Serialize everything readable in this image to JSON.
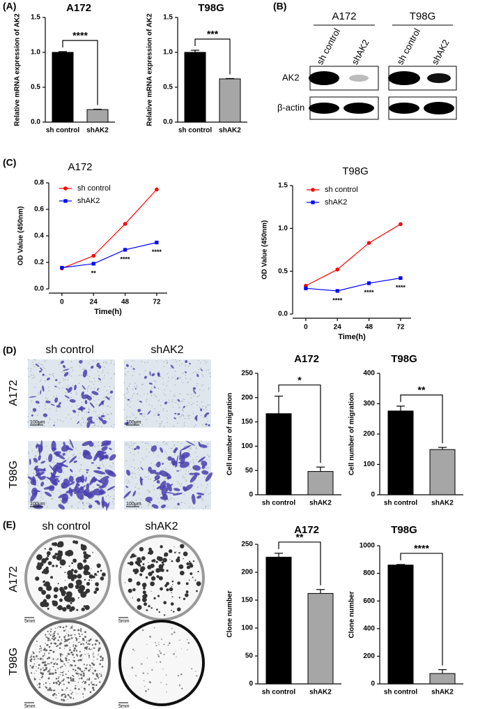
{
  "panel_labels": [
    "(A)",
    "(B)",
    "(C)",
    "(D)",
    "(E)"
  ],
  "western_blot": {
    "cell_lines": [
      "A172",
      "T98G"
    ],
    "lanes": [
      "sh control",
      "shAK2"
    ],
    "proteins": [
      "AK2",
      "β-actin"
    ]
  },
  "migration_images": {
    "columns": [
      "sh control",
      "shAK2"
    ],
    "rows": [
      "A172",
      "T98G"
    ],
    "scale_bar": "100μm"
  },
  "colony_images": {
    "columns": [
      "sh control",
      "shAK2"
    ],
    "rows": [
      "A172",
      "T98G"
    ],
    "scale_bar": "5mm"
  },
  "chart_data": [
    {
      "type": "bar",
      "title": "A172",
      "y_label": "Relative mRNA expression of AK2",
      "categories": [
        "sh control",
        "shAK2"
      ],
      "values": [
        1.0,
        0.18
      ],
      "errors": [
        0.01,
        0.005
      ],
      "colors": [
        "#000000",
        "#a6a6a6"
      ],
      "ylim": [
        0,
        1.5
      ],
      "yticks": [
        {
          "value": 0,
          "label": "0.0"
        },
        0.5,
        {
          "value": 1,
          "label": "1.0"
        },
        1.5
      ],
      "significance": "****"
    },
    {
      "type": "bar",
      "title": "T98G",
      "y_label": "Relative mRNA expression of AK2",
      "categories": [
        "sh control",
        "shAK2"
      ],
      "values": [
        1.0,
        0.62
      ],
      "errors": [
        0.03,
        0.005
      ],
      "colors": [
        "#000000",
        "#a6a6a6"
      ],
      "ylim": [
        0,
        1.5
      ],
      "yticks": [
        {
          "value": 0,
          "label": "0.0"
        },
        0.5,
        {
          "value": 1,
          "label": "1.0"
        },
        1.5
      ],
      "significance": "***"
    },
    {
      "type": "line",
      "title": "A172",
      "x_label": "Time(h)",
      "y_label": "OD Value (450nm)",
      "x": [
        0,
        24,
        48,
        72
      ],
      "xlim": [
        -10,
        80
      ],
      "xticks": [
        0,
        24,
        48,
        72
      ],
      "ylim": [
        0,
        0.8
      ],
      "yticks": [
        {
          "value": 0,
          "label": "0.0"
        },
        0.2,
        0.4,
        0.6,
        0.8
      ],
      "series": [
        {
          "name": "sh control",
          "color": "#ff0000",
          "marker": "circle",
          "values": [
            0.155,
            0.25,
            0.49,
            0.75
          ]
        },
        {
          "name": "shAK2",
          "color": "#0000ff",
          "marker": "square",
          "values": [
            0.16,
            0.19,
            0.295,
            0.35
          ]
        }
      ],
      "annotations": [
        {
          "x": 24,
          "text": "**"
        },
        {
          "x": 48,
          "text": "****"
        },
        {
          "x": 72,
          "text": "****"
        }
      ]
    },
    {
      "type": "line",
      "title": "T98G",
      "x_label": "Time(h)",
      "y_label": "OD Value (450nm)",
      "x": [
        0,
        24,
        48,
        72
      ],
      "xlim": [
        -10,
        80
      ],
      "xticks": [
        0,
        24,
        48,
        72
      ],
      "ylim": [
        0,
        1.5
      ],
      "yticks": [
        {
          "value": 0,
          "label": "0.0"
        },
        0.5,
        {
          "value": 1,
          "label": "1.0"
        },
        1.5
      ],
      "series": [
        {
          "name": "sh control",
          "color": "#ff0000",
          "marker": "circle",
          "values": [
            0.33,
            0.52,
            0.83,
            1.05
          ]
        },
        {
          "name": "shAK2",
          "color": "#0000ff",
          "marker": "square",
          "values": [
            0.3,
            0.27,
            0.36,
            0.42
          ]
        }
      ],
      "annotations": [
        {
          "x": 24,
          "text": "****"
        },
        {
          "x": 48,
          "text": "****"
        },
        {
          "x": 72,
          "text": "****"
        }
      ]
    },
    {
      "type": "bar",
      "title": "A172",
      "y_label": "Cell number of migration",
      "categories": [
        "sh control",
        "shAK2"
      ],
      "values": [
        167,
        48
      ],
      "errors": [
        36,
        9
      ],
      "colors": [
        "#000000",
        "#a6a6a6"
      ],
      "ylim": [
        0,
        250
      ],
      "yticks": [
        0,
        50,
        100,
        150,
        200,
        250
      ],
      "significance": "*"
    },
    {
      "type": "bar",
      "title": "T98G",
      "y_label": "Cell number of migration",
      "categories": [
        "sh control",
        "shAK2"
      ],
      "values": [
        276,
        149
      ],
      "errors": [
        16,
        7
      ],
      "colors": [
        "#000000",
        "#a6a6a6"
      ],
      "ylim": [
        0,
        400
      ],
      "yticks": [
        0,
        100,
        200,
        300,
        400
      ],
      "significance": "**"
    },
    {
      "type": "bar",
      "title": "A172",
      "y_label": "Clone number",
      "categories": [
        "sh control",
        "shAK2"
      ],
      "values": [
        227,
        162
      ],
      "errors": [
        7,
        7
      ],
      "colors": [
        "#000000",
        "#a6a6a6"
      ],
      "ylim": [
        0,
        250
      ],
      "yticks": [
        0,
        50,
        100,
        150,
        200,
        250
      ],
      "significance": "**"
    },
    {
      "type": "bar",
      "title": "T98G",
      "y_label": "Clone number",
      "categories": [
        "sh control",
        "shAK2"
      ],
      "values": [
        860,
        75
      ],
      "errors": [
        4,
        28
      ],
      "colors": [
        "#000000",
        "#a6a6a6"
      ],
      "ylim": [
        0,
        1000
      ],
      "yticks": [
        0,
        200,
        400,
        600,
        800,
        1000
      ],
      "significance": "****"
    }
  ]
}
